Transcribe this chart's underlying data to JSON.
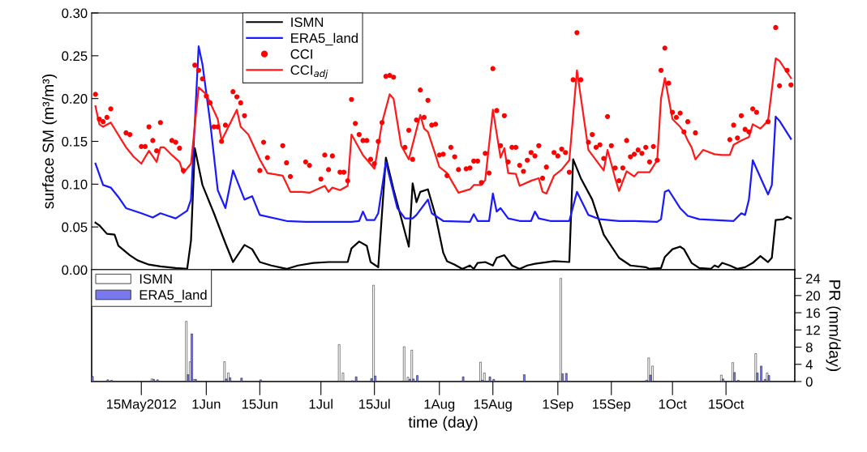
{
  "chart_data": [
    {
      "type": "line",
      "ylabel": "surface SM (m³/m³)",
      "xlim": [
        "2012-05-02",
        "2012-11-02"
      ],
      "ylim": [
        0,
        0.3
      ],
      "yticks": [
        {
          "value": 0,
          "label": "0.00"
        },
        {
          "value": 0.05,
          "label": "0.05"
        },
        {
          "value": 0.1,
          "label": "0.10"
        },
        {
          "value": 0.15,
          "label": "0.15"
        },
        {
          "value": 0.2,
          "label": "0.20"
        },
        {
          "value": 0.25,
          "label": "0.25"
        },
        {
          "value": 0.3,
          "label": "0.30"
        }
      ],
      "tick_labels": "y",
      "grid": false,
      "legend": "top",
      "series": [
        {
          "name": "ISMN",
          "type": "line",
          "color": "#000000",
          "x": [
            "2012-05-03",
            "2012-05-04",
            "2012-05-06",
            "2012-05-08",
            "2012-05-09",
            "2012-05-12",
            "2012-05-14",
            "2012-05-17",
            "2012-05-20",
            "2012-05-24",
            "2012-05-27",
            "2012-05-28",
            "2012-05-29",
            "2012-05-31",
            "2012-06-03",
            "2012-06-06",
            "2012-06-08",
            "2012-06-11",
            "2012-06-13",
            "2012-06-15",
            "2012-06-18",
            "2012-06-22",
            "2012-06-25",
            "2012-06-29",
            "2012-07-03",
            "2012-07-08",
            "2012-07-09",
            "2012-07-11",
            "2012-07-13",
            "2012-07-14",
            "2012-07-16",
            "2012-07-18",
            "2012-07-20",
            "2012-07-24",
            "2012-07-25",
            "2012-07-26",
            "2012-07-27",
            "2012-07-29",
            "2012-07-31",
            "2012-08-02",
            "2012-08-03",
            "2012-08-05",
            "2012-08-07",
            "2012-08-09",
            "2012-08-10",
            "2012-08-11",
            "2012-08-13",
            "2012-08-15",
            "2012-08-16",
            "2012-08-18",
            "2012-08-20",
            "2012-08-22",
            "2012-08-24",
            "2012-08-26",
            "2012-08-31",
            "2012-09-04",
            "2012-09-05",
            "2012-09-07",
            "2012-09-10",
            "2012-09-13",
            "2012-09-17",
            "2012-09-20",
            "2012-09-24",
            "2012-09-25",
            "2012-09-28",
            "2012-09-29",
            "2012-10-01",
            "2012-10-03",
            "2012-10-04",
            "2012-10-06",
            "2012-10-08",
            "2012-10-11",
            "2012-10-12",
            "2012-10-13",
            "2012-10-14",
            "2012-10-16",
            "2012-10-18",
            "2012-10-20",
            "2012-10-22",
            "2012-10-24",
            "2012-10-26",
            "2012-10-27",
            "2012-10-28",
            "2012-10-30",
            "2012-10-31",
            "2012-11-01"
          ],
          "values": [
            0.055,
            0.052,
            0.042,
            0.041,
            0.028,
            0.017,
            0.011,
            0.006,
            0.004,
            0.002,
            0.001,
            0.034,
            0.142,
            0.099,
            0.066,
            0.031,
            0.009,
            0.029,
            0.024,
            0.009,
            0.005,
            0.001,
            0.005,
            0.008,
            0.009,
            0.009,
            0.025,
            0.033,
            0.028,
            0.009,
            0.003,
            0.131,
            0.094,
            0.027,
            0.101,
            0.079,
            0.091,
            0.094,
            0.063,
            0.02,
            0.01,
            0.006,
            0.001,
            0.005,
            0.001,
            0.008,
            0.009,
            0.005,
            0.014,
            0.017,
            0.005,
            0.001,
            0.005,
            0.007,
            0.01,
            0.009,
            0.129,
            0.107,
            0.082,
            0.041,
            0.014,
            0.005,
            0.003,
            0.001,
            0.002,
            0.015,
            0.024,
            0.027,
            0.024,
            0.008,
            0.002,
            0.001,
            0.005,
            0.003,
            0.008,
            0.005,
            0.001,
            0.003,
            0.008,
            0.016,
            0.009,
            0.014,
            0.058,
            0.059,
            0.062,
            0.06
          ]
        },
        {
          "name": "ERA5_land",
          "type": "line",
          "color": "#1a1aff",
          "x": [
            "2012-05-03",
            "2012-05-05",
            "2012-05-07",
            "2012-05-09",
            "2012-05-11",
            "2012-05-15",
            "2012-05-18",
            "2012-05-20",
            "2012-05-22",
            "2012-05-24",
            "2012-05-27",
            "2012-05-28",
            "2012-05-30",
            "2012-05-31",
            "2012-06-02",
            "2012-06-04",
            "2012-06-06",
            "2012-06-08",
            "2012-06-11",
            "2012-06-13",
            "2012-06-15",
            "2012-06-22",
            "2012-06-27",
            "2012-07-09",
            "2012-07-11",
            "2012-07-12",
            "2012-07-13",
            "2012-07-15",
            "2012-07-16",
            "2012-07-18",
            "2012-07-21",
            "2012-07-23",
            "2012-07-25",
            "2012-07-26",
            "2012-07-29",
            "2012-07-30",
            "2012-08-02",
            "2012-08-09",
            "2012-08-10",
            "2012-08-11",
            "2012-08-14",
            "2012-08-15",
            "2012-08-16",
            "2012-08-17",
            "2012-08-19",
            "2012-08-22",
            "2012-08-25",
            "2012-08-26",
            "2012-08-27",
            "2012-08-30",
            "2012-09-04",
            "2012-09-06",
            "2012-09-09",
            "2012-09-12",
            "2012-09-17",
            "2012-09-21",
            "2012-09-27",
            "2012-09-28",
            "2012-09-29",
            "2012-09-30",
            "2012-10-03",
            "2012-10-05",
            "2012-10-08",
            "2012-10-17",
            "2012-10-19",
            "2012-10-20",
            "2012-10-21",
            "2012-10-22",
            "2012-10-25",
            "2012-10-26",
            "2012-10-27",
            "2012-10-28",
            "2012-10-29",
            "2012-11-01"
          ],
          "values": [
            0.124,
            0.099,
            0.096,
            0.085,
            0.072,
            0.066,
            0.061,
            0.066,
            0.063,
            0.06,
            0.069,
            0.082,
            0.261,
            0.24,
            0.173,
            0.093,
            0.072,
            0.116,
            0.082,
            0.086,
            0.064,
            0.057,
            0.056,
            0.056,
            0.057,
            0.068,
            0.058,
            0.058,
            0.066,
            0.126,
            0.072,
            0.06,
            0.06,
            0.064,
            0.082,
            0.066,
            0.057,
            0.056,
            0.065,
            0.057,
            0.057,
            0.089,
            0.068,
            0.072,
            0.06,
            0.057,
            0.057,
            0.068,
            0.06,
            0.057,
            0.057,
            0.091,
            0.064,
            0.059,
            0.057,
            0.057,
            0.056,
            0.059,
            0.091,
            0.093,
            0.072,
            0.063,
            0.059,
            0.057,
            0.066,
            0.064,
            0.082,
            0.128,
            0.098,
            0.088,
            0.099,
            0.179,
            0.174,
            0.153
          ]
        },
        {
          "name": "CCI",
          "type": "scatter",
          "marker": "circle",
          "color": "#ff0000",
          "x": [
            "2012-05-03",
            "2012-05-04",
            "2012-05-05",
            "2012-05-06",
            "2012-05-07",
            "2012-05-11",
            "2012-05-12",
            "2012-05-15",
            "2012-05-16",
            "2012-05-17",
            "2012-05-18",
            "2012-05-19",
            "2012-05-20",
            "2012-05-23",
            "2012-05-24",
            "2012-05-25",
            "2012-05-26",
            "2012-05-29",
            "2012-05-30",
            "2012-05-31",
            "2012-06-01",
            "2012-06-02",
            "2012-06-03",
            "2012-06-04",
            "2012-06-05",
            "2012-06-06",
            "2012-06-08",
            "2012-06-09",
            "2012-06-10",
            "2012-06-11",
            "2012-06-15",
            "2012-06-16",
            "2012-06-17",
            "2012-06-21",
            "2012-06-22",
            "2012-06-23",
            "2012-06-27",
            "2012-06-28",
            "2012-07-01",
            "2012-07-02",
            "2012-07-03",
            "2012-07-04",
            "2012-07-06",
            "2012-07-07",
            "2012-07-08",
            "2012-07-09",
            "2012-07-10",
            "2012-07-11",
            "2012-07-12",
            "2012-07-13",
            "2012-07-14",
            "2012-07-15",
            "2012-07-16",
            "2012-07-17",
            "2012-07-18",
            "2012-07-19",
            "2012-07-20",
            "2012-07-23",
            "2012-07-24",
            "2012-07-25",
            "2012-07-26",
            "2012-07-27",
            "2012-07-28",
            "2012-07-29",
            "2012-07-30",
            "2012-07-31",
            "2012-08-01",
            "2012-08-02",
            "2012-08-03",
            "2012-08-04",
            "2012-08-05",
            "2012-08-06",
            "2012-08-08",
            "2012-08-09",
            "2012-08-10",
            "2012-08-11",
            "2012-08-12",
            "2012-08-13",
            "2012-08-14",
            "2012-08-15",
            "2012-08-16",
            "2012-08-17",
            "2012-08-18",
            "2012-08-19",
            "2012-08-20",
            "2012-08-21",
            "2012-08-22",
            "2012-08-23",
            "2012-08-24",
            "2012-08-25",
            "2012-08-26",
            "2012-08-27",
            "2012-08-28",
            "2012-08-29",
            "2012-08-31",
            "2012-09-01",
            "2012-09-02",
            "2012-09-03",
            "2012-09-04",
            "2012-09-05",
            "2012-09-06",
            "2012-09-07",
            "2012-09-09",
            "2012-09-10",
            "2012-09-11",
            "2012-09-12",
            "2012-09-13",
            "2012-09-14",
            "2012-09-15",
            "2012-09-16",
            "2012-09-17",
            "2012-09-18",
            "2012-09-19",
            "2012-09-20",
            "2012-09-21",
            "2012-09-22",
            "2012-09-23",
            "2012-09-24",
            "2012-09-25",
            "2012-09-26",
            "2012-09-27",
            "2012-09-28",
            "2012-09-29",
            "2012-09-30",
            "2012-10-01",
            "2012-10-02",
            "2012-10-03",
            "2012-10-04",
            "2012-10-05",
            "2012-10-07",
            "2012-10-16",
            "2012-10-17",
            "2012-10-18",
            "2012-10-19",
            "2012-10-20",
            "2012-10-21",
            "2012-10-22",
            "2012-10-23",
            "2012-10-26",
            "2012-10-28",
            "2012-10-29",
            "2012-10-31",
            "2012-11-01"
          ],
          "values": [
            0.205,
            0.176,
            0.173,
            0.178,
            0.188,
            0.16,
            0.158,
            0.144,
            0.144,
            0.167,
            0.151,
            0.139,
            0.172,
            0.151,
            0.149,
            0.142,
            0.116,
            0.239,
            0.233,
            0.223,
            0.203,
            0.195,
            0.167,
            0.167,
            0.15,
            0.169,
            0.208,
            0.202,
            0.195,
            0.18,
            0.116,
            0.149,
            0.131,
            0.145,
            0.125,
            0.109,
            0.126,
            0.122,
            0.106,
            0.134,
            0.117,
            0.133,
            0.114,
            0.114,
            0.104,
            0.199,
            0.171,
            0.158,
            0.151,
            0.151,
            0.129,
            0.124,
            0.15,
            0.172,
            0.226,
            0.227,
            0.225,
            0.143,
            0.163,
            0.129,
            0.175,
            0.21,
            0.178,
            0.198,
            0.169,
            0.17,
            0.134,
            0.135,
            0.11,
            0.143,
            0.132,
            0.117,
            0.118,
            0.119,
            0.127,
            0.127,
            0.102,
            0.136,
            0.113,
            0.235,
            0.186,
            0.145,
            0.18,
            0.126,
            0.143,
            0.143,
            0.122,
            0.115,
            0.128,
            0.137,
            0.133,
            0.145,
            0.107,
            0.12,
            0.137,
            0.133,
            0.141,
            0.137,
            0.114,
            0.222,
            0.277,
            0.222,
            0.149,
            0.158,
            0.143,
            0.146,
            0.13,
            0.179,
            0.145,
            0.119,
            0.104,
            0.119,
            0.151,
            0.132,
            0.135,
            0.14,
            0.136,
            0.143,
            0.126,
            0.144,
            0.128,
            0.233,
            0.259,
            0.218,
            0.184,
            0.178,
            0.183,
            0.161,
            0.173,
            0.16,
            0.152,
            0.169,
            0.154,
            0.18,
            0.164,
            0.161,
            0.188,
            0.184,
            0.173,
            0.283,
            0.215,
            0.233,
            0.216
          ]
        },
        {
          "name": "CCI$_{adj}$",
          "type": "line",
          "color": "#ff1a1a",
          "x": [
            "2012-05-03",
            "2012-05-04",
            "2012-05-05",
            "2012-05-07",
            "2012-05-11",
            "2012-05-13",
            "2012-05-15",
            "2012-05-17",
            "2012-05-19",
            "2012-05-20",
            "2012-05-21",
            "2012-05-23",
            "2012-05-25",
            "2012-05-26",
            "2012-05-28",
            "2012-05-30",
            "2012-06-01",
            "2012-06-04",
            "2012-06-05",
            "2012-06-09",
            "2012-06-10",
            "2012-06-12",
            "2012-06-15",
            "2012-06-17",
            "2012-06-21",
            "2012-06-23",
            "2012-06-26",
            "2012-06-28",
            "2012-07-02",
            "2012-07-03",
            "2012-07-04",
            "2012-07-06",
            "2012-07-08",
            "2012-07-09",
            "2012-07-12",
            "2012-07-15",
            "2012-07-17",
            "2012-07-19",
            "2012-07-20",
            "2012-07-22",
            "2012-07-24",
            "2012-07-27",
            "2012-07-28",
            "2012-07-29",
            "2012-07-31",
            "2012-08-01",
            "2012-08-03",
            "2012-08-06",
            "2012-08-09",
            "2012-08-10",
            "2012-08-12",
            "2012-08-13",
            "2012-08-15",
            "2012-08-17",
            "2012-08-18",
            "2012-08-19",
            "2012-08-21",
            "2012-08-22",
            "2012-08-25",
            "2012-08-27",
            "2012-08-28",
            "2012-08-29",
            "2012-08-31",
            "2012-09-02",
            "2012-09-04",
            "2012-09-06",
            "2012-09-09",
            "2012-09-13",
            "2012-09-14",
            "2012-09-16",
            "2012-09-17",
            "2012-09-19",
            "2012-09-21",
            "2012-09-22",
            "2012-09-25",
            "2012-09-27",
            "2012-09-28",
            "2012-09-29",
            "2012-10-01",
            "2012-10-03",
            "2012-10-04",
            "2012-10-05",
            "2012-10-06",
            "2012-10-07",
            "2012-10-09",
            "2012-10-12",
            "2012-10-14",
            "2012-10-16",
            "2012-10-17",
            "2012-10-19",
            "2012-10-21",
            "2012-10-22",
            "2012-10-24",
            "2012-10-26",
            "2012-10-28",
            "2012-10-29",
            "2012-11-01"
          ],
          "values": [
            0.191,
            0.17,
            0.167,
            0.172,
            0.143,
            0.132,
            0.124,
            0.139,
            0.126,
            0.143,
            0.143,
            0.134,
            0.126,
            0.113,
            0.124,
            0.213,
            0.205,
            0.176,
            0.151,
            0.187,
            0.167,
            0.158,
            0.129,
            0.113,
            0.11,
            0.091,
            0.091,
            0.09,
            0.098,
            0.091,
            0.096,
            0.093,
            0.098,
            0.158,
            0.134,
            0.118,
            0.172,
            0.205,
            0.2,
            0.145,
            0.129,
            0.181,
            0.165,
            0.161,
            0.134,
            0.12,
            0.113,
            0.09,
            0.094,
            0.099,
            0.099,
            0.105,
            0.187,
            0.131,
            0.142,
            0.113,
            0.112,
            0.098,
            0.104,
            0.107,
            0.091,
            0.089,
            0.11,
            0.117,
            0.128,
            0.233,
            0.14,
            0.116,
            0.14,
            0.107,
            0.092,
            0.115,
            0.109,
            0.114,
            0.114,
            0.128,
            0.2,
            0.224,
            0.176,
            0.167,
            0.161,
            0.151,
            0.143,
            0.129,
            0.14,
            0.135,
            0.134,
            0.134,
            0.146,
            0.151,
            0.155,
            0.17,
            0.165,
            0.174,
            0.247,
            0.244,
            0.224
          ]
        }
      ]
    },
    {
      "type": "bar",
      "xlabel": "time (day)",
      "y2label": "PR (mm/day)",
      "xlim": [
        "2012-05-02",
        "2012-11-02"
      ],
      "xticks": [
        {
          "value": "2012-05-15",
          "label": "15May2012"
        },
        {
          "value": "2012-06-01",
          "label": "1Jun"
        },
        {
          "value": "2012-06-15",
          "label": "15Jun"
        },
        {
          "value": "2012-07-01",
          "label": "1Jul"
        },
        {
          "value": "2012-07-15",
          "label": "15Jul"
        },
        {
          "value": "2012-08-01",
          "label": "1Aug"
        },
        {
          "value": "2012-08-15",
          "label": "15Aug"
        },
        {
          "value": "2012-09-01",
          "label": "1Sep"
        },
        {
          "value": "2012-09-15",
          "label": "15Sep"
        },
        {
          "value": "2012-10-01",
          "label": "1Oct"
        },
        {
          "value": "2012-10-15",
          "label": "15Oct"
        }
      ],
      "y2lim": [
        0,
        26
      ],
      "y2ticks": [
        0,
        4,
        8,
        12,
        16,
        20,
        24
      ],
      "grid": false,
      "legend": "top left",
      "series": [
        {
          "name": "ISMN",
          "axis": "y2",
          "color": "#ffffff",
          "x": [
            "2012-05-18",
            "2012-05-27",
            "2012-05-28",
            "2012-05-29",
            "2012-06-06",
            "2012-06-07",
            "2012-07-06",
            "2012-07-07",
            "2012-07-15",
            "2012-07-23",
            "2012-07-24",
            "2012-07-25",
            "2012-08-12",
            "2012-08-13",
            "2012-09-02",
            "2012-09-25",
            "2012-09-26",
            "2012-10-14",
            "2012-10-17",
            "2012-10-23",
            "2012-10-26"
          ],
          "values": [
            0.6,
            14.0,
            4.6,
            0.5,
            4.6,
            2.0,
            8.6,
            2.0,
            22.4,
            8.1,
            1.0,
            7.3,
            4.5,
            2.0,
            24.0,
            5.5,
            3.6,
            1.5,
            4.4,
            6.5,
            2.0
          ]
        },
        {
          "name": "ERA5_land",
          "axis": "y2",
          "color": "#7878f0",
          "x": [
            "2012-05-02",
            "2012-05-06",
            "2012-05-07",
            "2012-05-18",
            "2012-05-19",
            "2012-05-27",
            "2012-05-28",
            "2012-05-29",
            "2012-06-06",
            "2012-06-07",
            "2012-06-10",
            "2012-06-15",
            "2012-07-09",
            "2012-07-10",
            "2012-07-14",
            "2012-07-15",
            "2012-07-24",
            "2012-07-25",
            "2012-07-26",
            "2012-08-07",
            "2012-08-12",
            "2012-08-14",
            "2012-08-15",
            "2012-08-23",
            "2012-09-02",
            "2012-09-03",
            "2012-09-24",
            "2012-09-25",
            "2012-10-14",
            "2012-10-17",
            "2012-10-18",
            "2012-10-23",
            "2012-10-24",
            "2012-10-25",
            "2012-10-26"
          ],
          "values": [
            1.2,
            0.4,
            0.3,
            0.5,
            0.4,
            1.6,
            11.1,
            0.5,
            0.6,
            0.9,
            0.8,
            0.4,
            0.2,
            1.1,
            0.7,
            1.3,
            0.5,
            0.6,
            1.4,
            1.1,
            0.3,
            1.1,
            0.5,
            1.6,
            1.8,
            1.9,
            0.3,
            1.5,
            0.6,
            2.1,
            0.3,
            2.0,
            3.6,
            0.5,
            1.4
          ]
        }
      ]
    }
  ]
}
